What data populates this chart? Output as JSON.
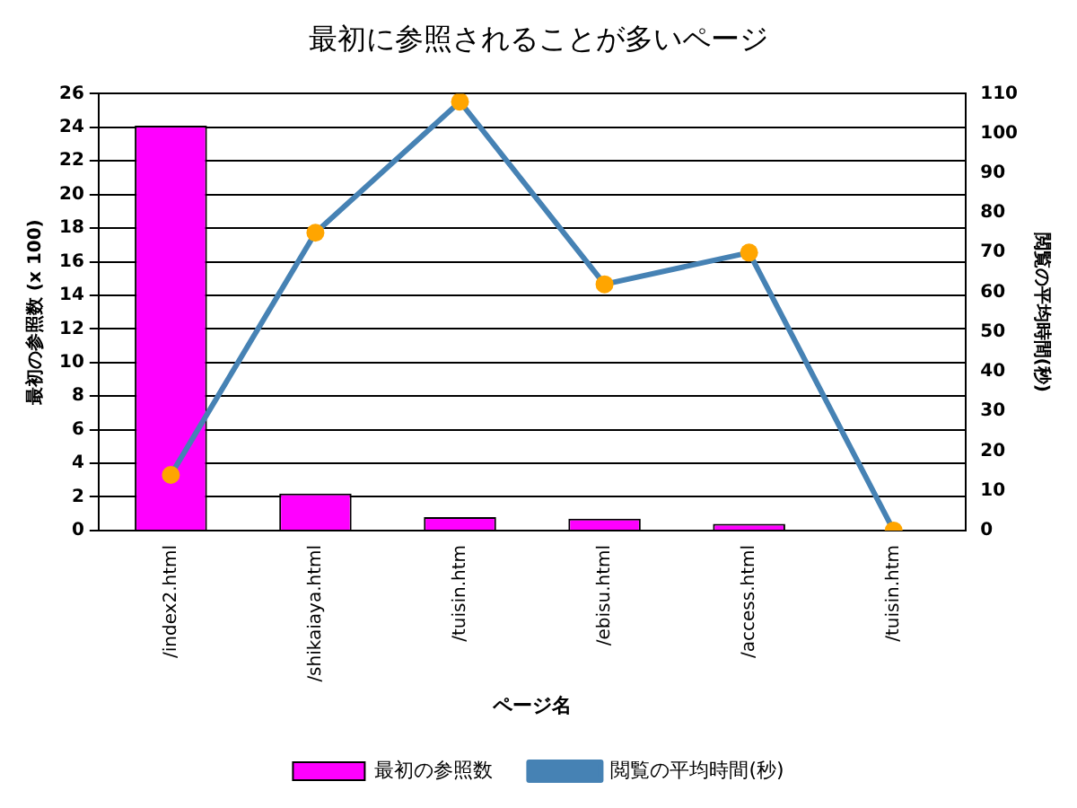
{
  "chart_data": {
    "type": "bar",
    "title": "最初に参照されることが多いページ",
    "xlabel": "ページ名",
    "ylabel": "最初の参照数 (x 100)",
    "y2label": "閲覧の平均時間(秒)",
    "categories": [
      "/index2.html",
      "/shikaiaya.html",
      "/tuisin.htm",
      "/ebisu.html",
      "/access.html",
      "/tuisin.htm"
    ],
    "series": [
      {
        "name": "最初の参照数",
        "color": "#ff00ff",
        "values": [
          24.1,
          2.2,
          0.8,
          0.7,
          0.4,
          0
        ]
      },
      {
        "name": "閲覧の平均時間(秒)",
        "type": "line",
        "axis": "y2",
        "color": "#4682b4",
        "values": [
          14,
          75,
          108,
          62,
          70,
          0
        ]
      }
    ],
    "ylim": [
      0,
      26
    ],
    "yticks": [
      0,
      2,
      4,
      6,
      8,
      10,
      12,
      14,
      16,
      18,
      20,
      22,
      24,
      26
    ],
    "y2lim": [
      0,
      110
    ],
    "y2ticks": [
      0,
      10,
      20,
      30,
      40,
      50,
      60,
      70,
      80,
      90,
      100,
      110
    ],
    "grid": "y",
    "legend": "bottom",
    "marker": "circle"
  }
}
